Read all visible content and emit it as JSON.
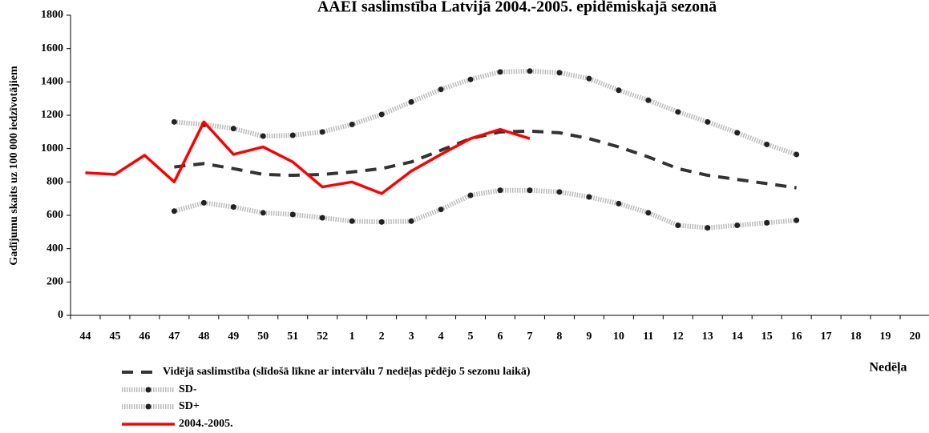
{
  "chart_data": {
    "type": "line",
    "title": "AAEI saslimstība Latvijā 2004.-2005. epidēmiskajā sezonā",
    "y_label": "Gadījumu skaits uz 100 000 iedzīvotājiem",
    "x_label": "Nedēļa",
    "categories": [
      "44",
      "45",
      "46",
      "47",
      "48",
      "49",
      "50",
      "51",
      "52",
      "1",
      "2",
      "3",
      "4",
      "5",
      "6",
      "7",
      "8",
      "9",
      "10",
      "11",
      "12",
      "13",
      "14",
      "15",
      "16",
      "17",
      "18",
      "19",
      "20"
    ],
    "ylim": [
      0,
      1800
    ],
    "yticks": [
      0,
      200,
      400,
      600,
      800,
      1000,
      1200,
      1400,
      1600,
      1800
    ],
    "grid": false,
    "legend": "bottom-left",
    "series": [
      {
        "name": "Vidējā saslimstība (slīdošā līkne ar intervālu 7 nedēļas pēdējo 5 sezonu laikā)",
        "color": "#333333",
        "style": "dashed",
        "markers": false,
        "values": [
          null,
          null,
          null,
          890,
          910,
          880,
          845,
          840,
          845,
          860,
          880,
          920,
          990,
          1060,
          1100,
          1105,
          1095,
          1060,
          1010,
          950,
          880,
          840,
          815,
          790,
          765,
          null,
          null,
          null,
          null
        ]
      },
      {
        "name": "SD-",
        "color": "#bbbbbb",
        "style": "dotted",
        "markers": true,
        "values": [
          null,
          null,
          null,
          625,
          675,
          650,
          615,
          605,
          585,
          565,
          560,
          565,
          635,
          720,
          750,
          750,
          740,
          710,
          670,
          615,
          540,
          525,
          540,
          555,
          570,
          null,
          null,
          null,
          null
        ]
      },
      {
        "name": "SD+",
        "color": "#bbbbbb",
        "style": "dotted",
        "markers": true,
        "values": [
          null,
          null,
          null,
          1160,
          1145,
          1120,
          1075,
          1080,
          1100,
          1145,
          1205,
          1280,
          1355,
          1415,
          1460,
          1465,
          1455,
          1420,
          1350,
          1290,
          1220,
          1160,
          1095,
          1025,
          965,
          null,
          null,
          null,
          null
        ]
      },
      {
        "name": "2004.-2005.",
        "color": "#ff0000",
        "style": "solid",
        "markers": false,
        "values": [
          855,
          845,
          960,
          800,
          1160,
          965,
          1010,
          920,
          770,
          800,
          730,
          865,
          965,
          1060,
          1115,
          1060,
          null,
          null,
          null,
          null,
          null,
          null,
          null,
          null,
          null,
          null,
          null,
          null,
          null
        ]
      }
    ]
  }
}
